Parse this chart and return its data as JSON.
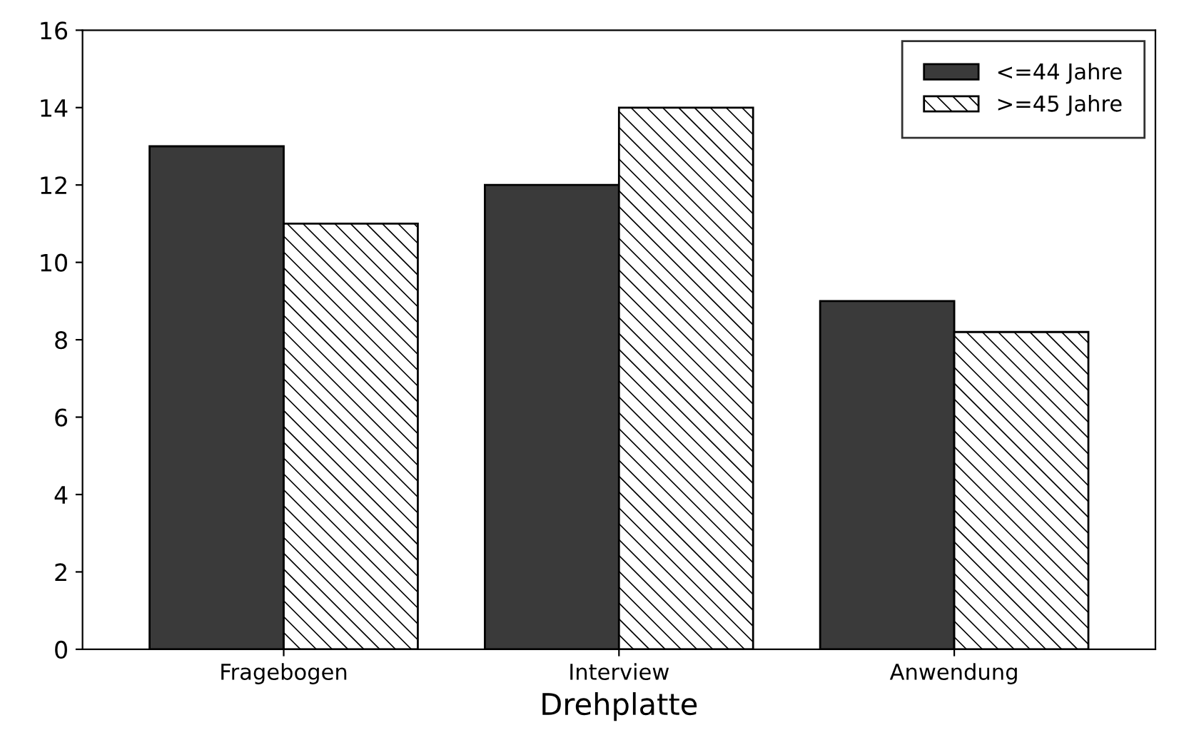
{
  "chart_data": {
    "type": "bar",
    "xlabel": "Drehplatte",
    "categories": [
      "Fragebogen",
      "Interview",
      "Anwendung"
    ],
    "series": [
      {
        "name": "<=44 Jahre",
        "color": "#3a3a3a",
        "values": [
          13,
          12,
          9
        ]
      },
      {
        "name": ">=45 Jahre",
        "color": "#000000",
        "values": [
          11,
          14,
          8.2
        ]
      }
    ],
    "ylim": [
      0,
      16
    ],
    "yticks": [
      0,
      2,
      4,
      6,
      8,
      10,
      12,
      14,
      16
    ],
    "grid": false,
    "legend": "top right"
  }
}
